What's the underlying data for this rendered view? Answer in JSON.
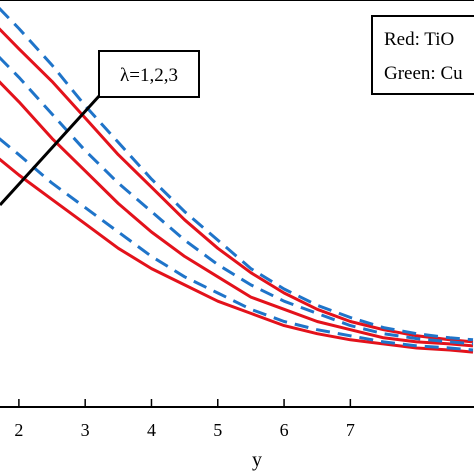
{
  "chart_data": {
    "type": "line",
    "xlabel": "y",
    "ylabel": "",
    "xlim": [
      1.7,
      8.85
    ],
    "ylim": [
      0.0,
      1.0
    ],
    "xticks": [
      2,
      3,
      4,
      5,
      6,
      7
    ],
    "legend_lines": [
      "Red: TiO",
      "Green: Cu"
    ],
    "legend_placement": "top-right",
    "annotation": "λ=1,2,3",
    "grid": false,
    "colors": {
      "red": "#e3121b",
      "blue": "#1f74c9"
    },
    "series": [
      {
        "style": "solid",
        "color": "red",
        "x": [
          1.7,
          2,
          2.5,
          3,
          3.5,
          4,
          4.5,
          5,
          5.5,
          6,
          6.5,
          7,
          7.5,
          8,
          8.5,
          8.85
        ],
        "y": [
          0.93,
          0.88,
          0.8,
          0.71,
          0.62,
          0.54,
          0.46,
          0.39,
          0.33,
          0.28,
          0.24,
          0.21,
          0.19,
          0.175,
          0.165,
          0.16
        ]
      },
      {
        "style": "dashed",
        "color": "blue",
        "x": [
          1.7,
          2,
          2.5,
          3,
          3.5,
          4,
          4.5,
          5,
          5.5,
          6,
          6.5,
          7,
          7.5,
          8,
          8.5,
          8.85
        ],
        "y": [
          0.98,
          0.93,
          0.84,
          0.74,
          0.65,
          0.56,
          0.48,
          0.41,
          0.34,
          0.29,
          0.25,
          0.22,
          0.195,
          0.18,
          0.17,
          0.165
        ]
      },
      {
        "style": "solid",
        "color": "red",
        "x": [
          1.7,
          2,
          2.5,
          3,
          3.5,
          4,
          4.5,
          5,
          5.5,
          6,
          6.5,
          7,
          7.5,
          8,
          8.5,
          8.85
        ],
        "y": [
          0.8,
          0.75,
          0.66,
          0.58,
          0.5,
          0.43,
          0.37,
          0.32,
          0.27,
          0.24,
          0.21,
          0.19,
          0.17,
          0.16,
          0.155,
          0.15
        ]
      },
      {
        "style": "dashed",
        "color": "blue",
        "x": [
          1.7,
          2,
          2.5,
          3,
          3.5,
          4,
          4.5,
          5,
          5.5,
          6,
          6.5,
          7,
          7.5,
          8,
          8.5,
          8.85
        ],
        "y": [
          0.86,
          0.81,
          0.72,
          0.63,
          0.55,
          0.48,
          0.41,
          0.35,
          0.3,
          0.26,
          0.23,
          0.2,
          0.18,
          0.168,
          0.16,
          0.155
        ]
      },
      {
        "style": "solid",
        "color": "red",
        "x": [
          1.7,
          2,
          2.5,
          3,
          3.5,
          4,
          4.5,
          5,
          5.5,
          6,
          6.5,
          7,
          7.5,
          8,
          8.5,
          8.85
        ],
        "y": [
          0.61,
          0.57,
          0.51,
          0.45,
          0.39,
          0.34,
          0.3,
          0.26,
          0.23,
          0.2,
          0.18,
          0.165,
          0.155,
          0.145,
          0.14,
          0.135
        ]
      },
      {
        "style": "dashed",
        "color": "blue",
        "x": [
          1.7,
          2,
          2.5,
          3,
          3.5,
          4,
          4.5,
          5,
          5.5,
          6,
          6.5,
          7,
          7.5,
          8,
          8.5,
          8.85
        ],
        "y": [
          0.66,
          0.62,
          0.55,
          0.49,
          0.43,
          0.37,
          0.32,
          0.28,
          0.24,
          0.21,
          0.19,
          0.175,
          0.16,
          0.15,
          0.145,
          0.14
        ]
      }
    ]
  }
}
